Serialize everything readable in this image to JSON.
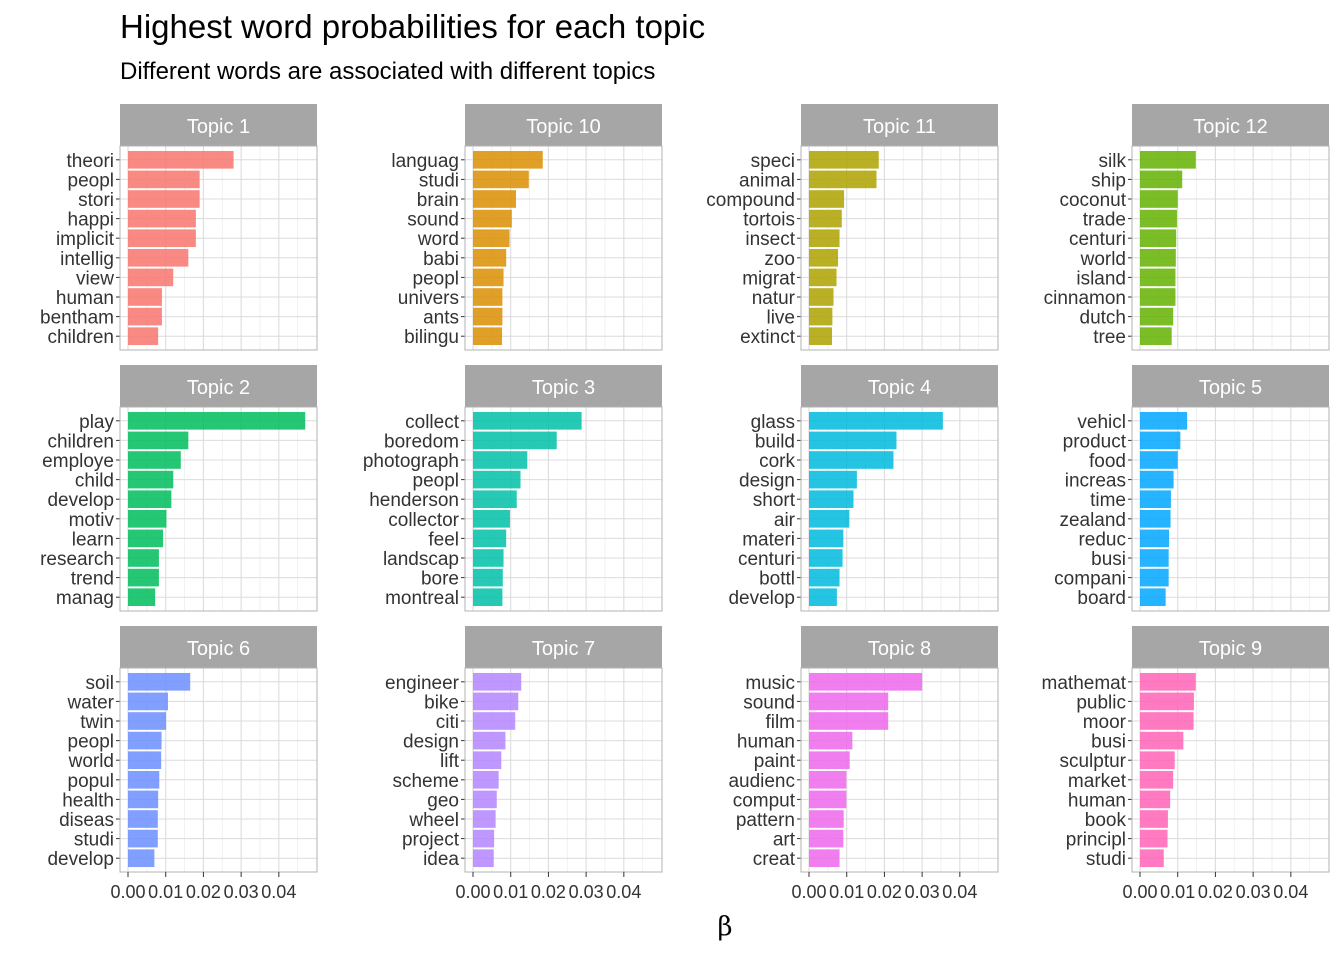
{
  "title": "Highest word probabilities for each topic",
  "subtitle": "Different words are associated with different topics",
  "chart_data": {
    "type": "bar",
    "orientation": "horizontal",
    "xlabel": "β",
    "ylabel": "",
    "xlim": [
      0,
      0.048
    ],
    "xticks": [
      0.0,
      0.01,
      0.02,
      0.03,
      0.04
    ],
    "xtick_labels": [
      "0.00",
      "0.01",
      "0.02",
      "0.03",
      "0.04"
    ],
    "grid": true,
    "legend": "none",
    "facets": [
      {
        "label": "Topic 1",
        "color": "#F8766D",
        "words": [
          "theori",
          "peopl",
          "stori",
          "happi",
          "implicit",
          "intellig",
          "view",
          "human",
          "bentham",
          "children"
        ],
        "values": [
          0.028,
          0.019,
          0.019,
          0.018,
          0.018,
          0.016,
          0.012,
          0.009,
          0.009,
          0.008
        ]
      },
      {
        "label": "Topic 10",
        "color": "#DB8E00",
        "words": [
          "languag",
          "studi",
          "brain",
          "sound",
          "word",
          "babi",
          "peopl",
          "univers",
          "ants",
          "bilingu"
        ],
        "values": [
          0.0185,
          0.0148,
          0.0114,
          0.0103,
          0.0097,
          0.0088,
          0.0081,
          0.0078,
          0.0078,
          0.0077
        ]
      },
      {
        "label": "Topic 11",
        "color": "#AEA200",
        "words": [
          "speci",
          "animal",
          "compound",
          "tortois",
          "insect",
          "zoo",
          "migrat",
          "natur",
          "live",
          "extinct"
        ],
        "values": [
          0.0185,
          0.0179,
          0.0093,
          0.0087,
          0.0081,
          0.0077,
          0.0073,
          0.0065,
          0.0062,
          0.0061
        ]
      },
      {
        "label": "Topic 12",
        "color": "#64B200",
        "words": [
          "silk",
          "ship",
          "coconut",
          "trade",
          "centuri",
          "world",
          "island",
          "cinnamon",
          "dutch",
          "tree"
        ],
        "values": [
          0.0148,
          0.0112,
          0.01,
          0.0098,
          0.0096,
          0.0095,
          0.0094,
          0.0094,
          0.0088,
          0.0084
        ]
      },
      {
        "label": "Topic 2",
        "color": "#00BD5C",
        "words": [
          "play",
          "children",
          "employe",
          "child",
          "develop",
          "motiv",
          "learn",
          "research",
          "trend",
          "manag"
        ],
        "values": [
          0.047,
          0.016,
          0.014,
          0.012,
          0.0115,
          0.0102,
          0.0093,
          0.0082,
          0.0082,
          0.0072
        ]
      },
      {
        "label": "Topic 3",
        "color": "#00C1A7",
        "words": [
          "collect",
          "boredom",
          "photograph",
          "peopl",
          "henderson",
          "collector",
          "feel",
          "landscap",
          "bore",
          "montreal"
        ],
        "values": [
          0.0288,
          0.0222,
          0.0144,
          0.0126,
          0.0116,
          0.0098,
          0.0088,
          0.0081,
          0.0079,
          0.0078
        ]
      },
      {
        "label": "Topic 4",
        "color": "#00BADE",
        "words": [
          "glass",
          "build",
          "cork",
          "design",
          "short",
          "air",
          "materi",
          "centuri",
          "bottl",
          "develop"
        ],
        "values": [
          0.0355,
          0.0232,
          0.0224,
          0.0127,
          0.0118,
          0.0107,
          0.0091,
          0.0089,
          0.0081,
          0.0074
        ]
      },
      {
        "label": "Topic 5",
        "color": "#00A6FF",
        "words": [
          "vehicl",
          "product",
          "food",
          "increas",
          "time",
          "zealand",
          "reduc",
          "busi",
          "compani",
          "board"
        ],
        "values": [
          0.0125,
          0.0107,
          0.01,
          0.0089,
          0.0082,
          0.0081,
          0.0077,
          0.0076,
          0.0076,
          0.0068
        ]
      },
      {
        "label": "Topic 6",
        "color": "#6B8EFF",
        "words": [
          "soil",
          "water",
          "twin",
          "peopl",
          "world",
          "popul",
          "health",
          "diseas",
          "studi",
          "develop"
        ],
        "values": [
          0.0165,
          0.0106,
          0.0101,
          0.0089,
          0.0088,
          0.0083,
          0.008,
          0.0079,
          0.0079,
          0.007
        ]
      },
      {
        "label": "Topic 7",
        "color": "#B385FF",
        "words": [
          "engineer",
          "bike",
          "citi",
          "design",
          "lift",
          "scheme",
          "geo",
          "wheel",
          "project",
          "idea"
        ],
        "values": [
          0.0128,
          0.012,
          0.0112,
          0.0086,
          0.0075,
          0.0068,
          0.0063,
          0.006,
          0.0056,
          0.0055
        ]
      },
      {
        "label": "Topic 8",
        "color": "#EF67EB",
        "words": [
          "music",
          "sound",
          "film",
          "human",
          "paint",
          "audienc",
          "comput",
          "pattern",
          "art",
          "creat"
        ],
        "values": [
          0.03,
          0.021,
          0.021,
          0.0115,
          0.0108,
          0.0099,
          0.0099,
          0.0092,
          0.0091,
          0.0081
        ]
      },
      {
        "label": "Topic 9",
        "color": "#FF63B6",
        "words": [
          "mathemat",
          "public",
          "moor",
          "busi",
          "sculptur",
          "market",
          "human",
          "book",
          "principl",
          "studi"
        ],
        "values": [
          0.0148,
          0.0143,
          0.0142,
          0.0115,
          0.0092,
          0.0088,
          0.008,
          0.0074,
          0.0073,
          0.0063
        ]
      }
    ]
  }
}
